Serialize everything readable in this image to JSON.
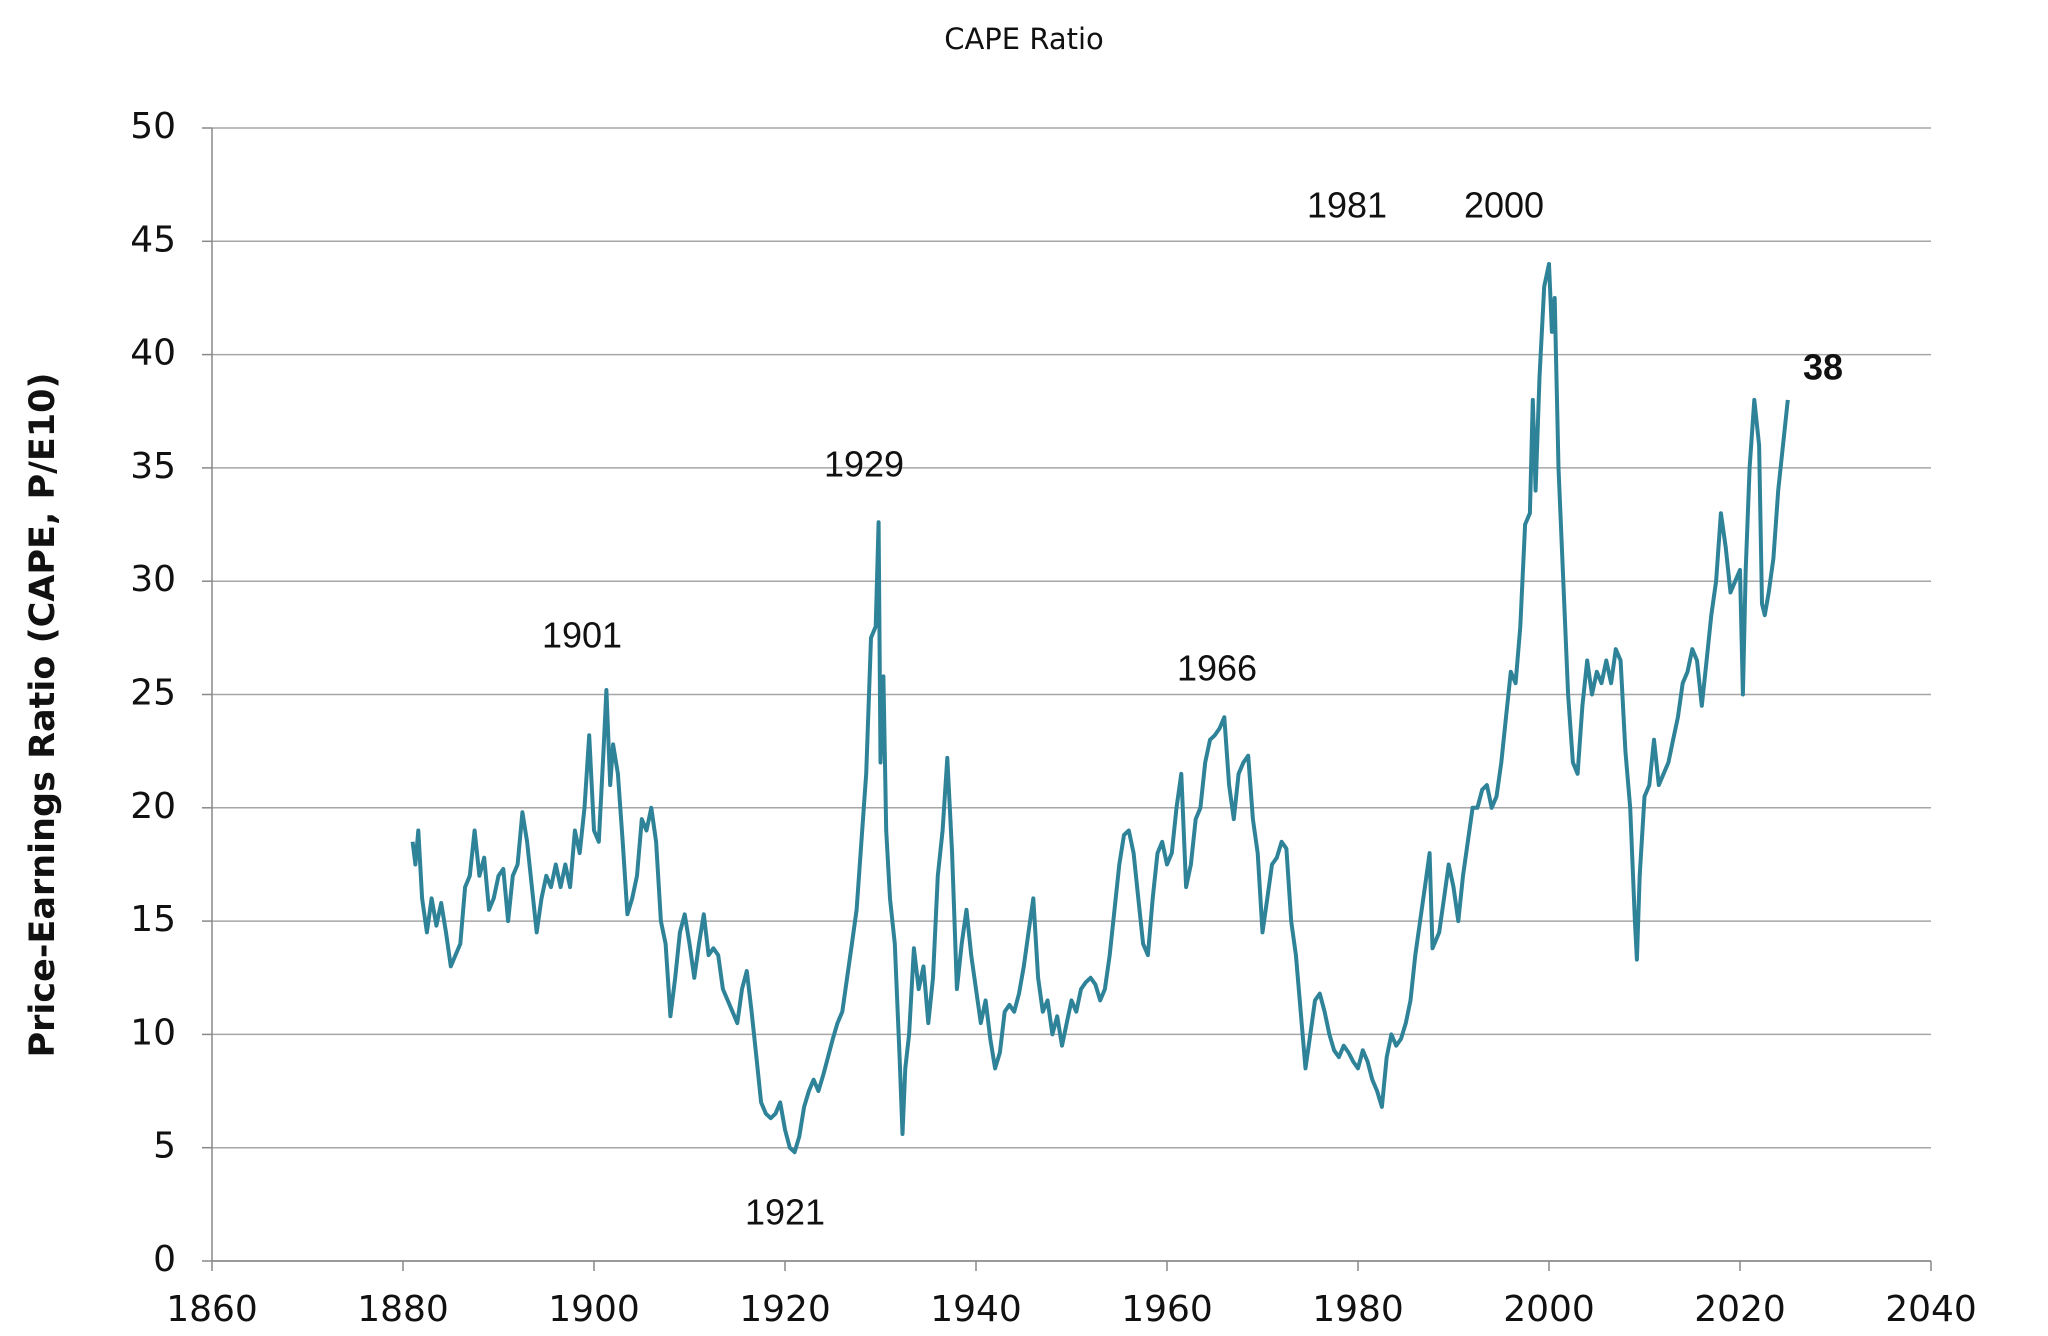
{
  "chart_data": {
    "type": "line",
    "title": "CAPE Ratio",
    "y_label": "Price-Earnings Ratio (CAPE, P/E10)",
    "color": "#2f8399",
    "grid": true,
    "xlim": [
      1860,
      2040
    ],
    "xticks": [
      1860,
      1880,
      1900,
      1920,
      1940,
      1960,
      1980,
      2000,
      2020,
      2040
    ],
    "ylim": [
      0,
      50
    ],
    "yticks": [
      0,
      5,
      10,
      15,
      20,
      25,
      30,
      35,
      40,
      45,
      50
    ],
    "annotations": [
      "1901",
      "1921",
      "1929",
      "1966",
      "1981",
      "2000",
      "38"
    ],
    "x": [
      1881,
      1881.3,
      1881.6,
      1882,
      1882.5,
      1883,
      1883.5,
      1884,
      1884.5,
      1885,
      1885.5,
      1886,
      1886.5,
      1887,
      1887.5,
      1888,
      1888.5,
      1889,
      1889.5,
      1890,
      1890.5,
      1891,
      1891.5,
      1892,
      1892.5,
      1893,
      1893.5,
      1894,
      1894.5,
      1895,
      1895.5,
      1896,
      1896.5,
      1897,
      1897.5,
      1898,
      1898.5,
      1899,
      1899.5,
      1900,
      1900.5,
      1901,
      1901.3,
      1901.7,
      1902,
      1902.5,
      1903,
      1903.5,
      1904,
      1904.5,
      1905,
      1905.5,
      1906,
      1906.5,
      1907,
      1907.5,
      1908,
      1908.5,
      1909,
      1909.5,
      1910,
      1910.5,
      1911,
      1911.5,
      1912,
      1912.5,
      1913,
      1913.5,
      1914,
      1914.5,
      1915,
      1915.5,
      1916,
      1916.5,
      1917,
      1917.5,
      1918,
      1918.5,
      1919,
      1919.5,
      1920,
      1920.5,
      1921,
      1921.5,
      1922,
      1922.5,
      1923,
      1923.5,
      1924,
      1924.5,
      1925,
      1925.5,
      1926,
      1926.5,
      1927,
      1927.5,
      1928,
      1928.5,
      1929,
      1929.5,
      1929.8,
      1930,
      1930.3,
      1930.6,
      1931,
      1931.5,
      1932,
      1932.3,
      1932.6,
      1933,
      1933.5,
      1934,
      1934.5,
      1935,
      1935.5,
      1936,
      1936.5,
      1937,
      1937.5,
      1938,
      1938.5,
      1939,
      1939.5,
      1940,
      1940.5,
      1941,
      1941.5,
      1942,
      1942.5,
      1943,
      1943.5,
      1944,
      1944.5,
      1945,
      1945.5,
      1946,
      1946.5,
      1947,
      1947.5,
      1948,
      1948.5,
      1949,
      1949.5,
      1950,
      1950.5,
      1951,
      1951.5,
      1952,
      1952.5,
      1953,
      1953.5,
      1954,
      1954.5,
      1955,
      1955.5,
      1956,
      1956.5,
      1957,
      1957.5,
      1958,
      1958.5,
      1959,
      1959.5,
      1960,
      1960.5,
      1961,
      1961.5,
      1962,
      1962.5,
      1963,
      1963.5,
      1964,
      1964.5,
      1965,
      1965.5,
      1966,
      1966.5,
      1967,
      1967.5,
      1968,
      1968.5,
      1969,
      1969.5,
      1970,
      1970.5,
      1971,
      1971.5,
      1972,
      1972.5,
      1973,
      1973.5,
      1974,
      1974.5,
      1975,
      1975.5,
      1976,
      1976.5,
      1977,
      1977.5,
      1978,
      1978.5,
      1979,
      1979.5,
      1980,
      1980.5,
      1981,
      1981.5,
      1982,
      1982.5,
      1983,
      1983.5,
      1984,
      1984.5,
      1985,
      1985.5,
      1986,
      1986.5,
      1987,
      1987.5,
      1987.8,
      1988,
      1988.5,
      1989,
      1989.5,
      1990,
      1990.5,
      1991,
      1991.5,
      1992,
      1992.5,
      1993,
      1993.5,
      1994,
      1994.5,
      1995,
      1995.5,
      1996,
      1996.5,
      1997,
      1997.5,
      1998,
      1998.3,
      1998.6,
      1999,
      1999.5,
      2000,
      2000.3,
      2000.6,
      2001,
      2001.5,
      2002,
      2002.5,
      2003,
      2003.5,
      2004,
      2004.5,
      2005,
      2005.5,
      2006,
      2006.5,
      2007,
      2007.5,
      2008,
      2008.5,
      2009,
      2009.2,
      2009.5,
      2010,
      2010.5,
      2011,
      2011.5,
      2012,
      2012.5,
      2013,
      2013.5,
      2014,
      2014.5,
      2015,
      2015.5,
      2016,
      2016.5,
      2017,
      2017.5,
      2018,
      2018.5,
      2019,
      2019.5,
      2020,
      2020.3,
      2020.6,
      2021,
      2021.5,
      2022,
      2022.3,
      2022.6,
      2023,
      2023.5,
      2024,
      2024.5,
      2025
    ],
    "values": [
      18.5,
      17.5,
      19,
      16,
      14.5,
      16,
      14.8,
      15.8,
      14.5,
      13,
      13.5,
      14,
      16.5,
      17,
      19,
      17,
      17.8,
      15.5,
      16,
      17,
      17.3,
      15,
      17,
      17.5,
      19.8,
      18.5,
      16.5,
      14.5,
      16,
      17,
      16.5,
      17.5,
      16.5,
      17.5,
      16.5,
      19,
      18,
      20,
      23.2,
      19,
      18.5,
      22.5,
      25.2,
      21,
      22.8,
      21.5,
      18.5,
      15.3,
      16,
      17,
      19.5,
      19,
      20,
      18.5,
      15,
      14,
      10.8,
      12.5,
      14.5,
      15.3,
      14,
      12.5,
      14,
      15.3,
      13.5,
      13.8,
      13.5,
      12,
      11.5,
      11,
      10.5,
      12,
      12.8,
      11,
      9,
      7,
      6.5,
      6.3,
      6.5,
      7,
      5.8,
      5,
      4.8,
      5.5,
      6.8,
      7.5,
      8,
      7.5,
      8.2,
      9,
      9.8,
      10.5,
      11,
      12.5,
      14,
      15.5,
      18.5,
      21.5,
      27.5,
      28,
      32.6,
      22,
      25.8,
      19,
      16,
      14,
      9,
      5.6,
      8.5,
      10,
      13.8,
      12,
      13,
      10.5,
      12.5,
      17,
      19,
      22.2,
      18,
      12,
      14,
      15.5,
      13.5,
      12,
      10.5,
      11.5,
      9.8,
      8.5,
      9.2,
      11,
      11.3,
      11,
      11.8,
      13,
      14.5,
      16,
      12.5,
      11,
      11.5,
      10,
      10.8,
      9.5,
      10.5,
      11.5,
      11,
      12,
      12.3,
      12.5,
      12.2,
      11.5,
      12,
      13.5,
      15.5,
      17.5,
      18.8,
      19,
      18,
      16,
      14,
      13.5,
      16,
      18,
      18.5,
      17.5,
      18,
      20,
      21.5,
      16.5,
      17.5,
      19.5,
      20,
      22,
      23,
      23.2,
      23.5,
      24,
      21,
      19.5,
      21.5,
      22,
      22.3,
      19.5,
      18,
      14.5,
      16,
      17.5,
      17.8,
      18.5,
      18.2,
      15,
      13.5,
      11,
      8.5,
      10,
      11.5,
      11.8,
      11,
      10,
      9.3,
      9,
      9.5,
      9.2,
      8.8,
      8.5,
      9.3,
      8.8,
      8,
      7.5,
      6.8,
      9,
      10,
      9.5,
      9.8,
      10.5,
      11.5,
      13.5,
      15,
      16.5,
      18,
      13.8,
      14,
      14.5,
      16,
      17.5,
      16.5,
      15,
      17,
      18.5,
      20,
      20,
      20.8,
      21,
      20,
      20.5,
      22,
      24,
      26,
      25.5,
      28,
      32.5,
      33,
      38,
      34,
      39,
      43,
      44,
      41,
      42.5,
      35,
      30,
      25,
      22,
      21.5,
      24.5,
      26.5,
      25,
      26,
      25.5,
      26.5,
      25.5,
      27,
      26.5,
      22.5,
      20,
      15,
      13.3,
      17,
      20.5,
      21,
      23,
      21,
      21.5,
      22,
      23,
      24,
      25.5,
      26,
      27,
      26.5,
      24.5,
      26.5,
      28.5,
      30,
      33,
      31.5,
      29.5,
      30,
      30.5,
      25,
      30.5,
      35,
      38,
      36,
      29,
      28.5,
      29.5,
      31,
      34,
      36,
      38
    ]
  }
}
